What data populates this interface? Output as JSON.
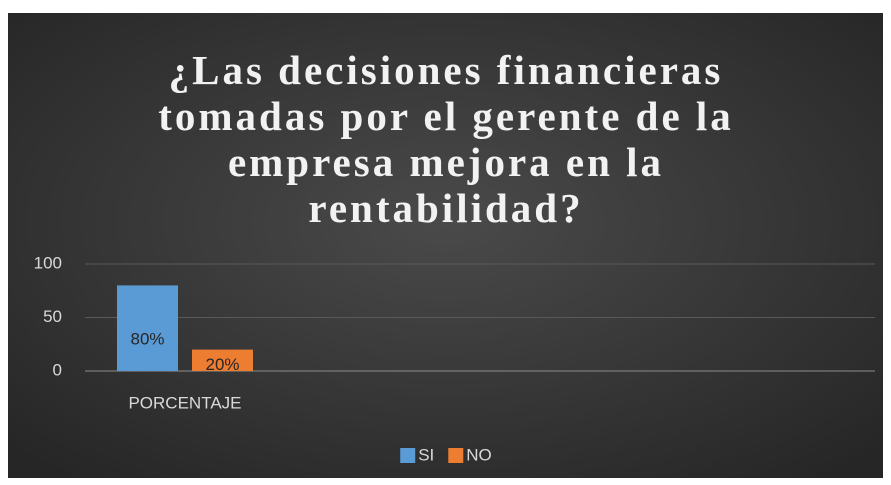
{
  "chart_data": {
    "type": "bar",
    "title": "¿Las decisiones financieras tomadas por el gerente de la empresa mejora en la rentabilidad?",
    "categories": [
      "PORCENTAJE"
    ],
    "series": [
      {
        "name": "SI",
        "color": "#5b9bd5",
        "values": [
          80
        ],
        "value_labels": [
          "80%"
        ]
      },
      {
        "name": "NO",
        "color": "#ed7d31",
        "values": [
          20
        ],
        "value_labels": [
          "20%"
        ]
      }
    ],
    "ylim": [
      0,
      100
    ],
    "yticks": [
      0,
      50,
      100
    ],
    "grid": true,
    "legend": "bottom"
  }
}
